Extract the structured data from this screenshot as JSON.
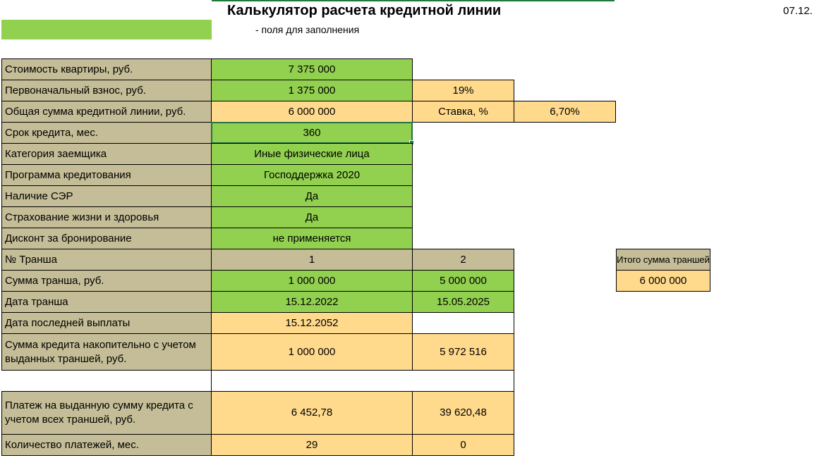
{
  "header": {
    "title": "Калькулятор расчета кредитной линии",
    "date": "07.12.",
    "legend_text": "- поля для заполнения"
  },
  "rows": {
    "apartment_cost": {
      "label": "Стоимость квартиры, руб.",
      "value": "7 375 000"
    },
    "down_payment": {
      "label": "Первоначальный взнос, руб.",
      "value": "1 375 000",
      "percent": "19%"
    },
    "credit_total": {
      "label": "Общая сумма кредитной линии, руб.",
      "value": "6 000 000",
      "rate_label": "Ставка, %",
      "rate_value": "6,70%"
    },
    "term": {
      "label": "Срок кредита, мес.",
      "value": "360"
    },
    "borrower_category": {
      "label": "Категория заемщика",
      "value": "Иные физические лица"
    },
    "program": {
      "label": "Программа кредитования",
      "value": "Господдержка 2020"
    },
    "ser": {
      "label": "Наличие СЭР",
      "value": "Да"
    },
    "insurance": {
      "label": "Страхование жизни и здоровья",
      "value": "Да"
    },
    "discount": {
      "label": "Дисконт за бронирование",
      "value": "не применяется"
    },
    "tranche_no": {
      "label": "№ Транша",
      "v1": "1",
      "v2": "2"
    },
    "tranche_sum": {
      "label": "Сумма транша, руб.",
      "v1": "1 000 000",
      "v2": "5 000 000"
    },
    "tranche_date": {
      "label": "Дата транша",
      "v1": "15.12.2022",
      "v2": "15.05.2025"
    },
    "last_payment_date": {
      "label": "Дата последней выплаты",
      "v1": "15.12.2052"
    },
    "cumulative": {
      "label": "Сумма кредита накопительно с учетом выданных траншей, руб.",
      "v1": "1 000 000",
      "v2": "5 972 516"
    },
    "payment": {
      "label": "Платеж на выданную сумму кредита с учетом всех траншей, руб.",
      "v1": "6 452,78",
      "v2": "39 620,48"
    },
    "payment_count": {
      "label": "Количество платежей, мес.",
      "v1": "29",
      "v2": "0"
    }
  },
  "tranche_total": {
    "label": "Итого сумма траншей",
    "value": "6 000 000"
  },
  "colors": {
    "input_green": "#92d050",
    "calc_yellow": "#ffd98c",
    "label_tan": "#c4bd97"
  }
}
